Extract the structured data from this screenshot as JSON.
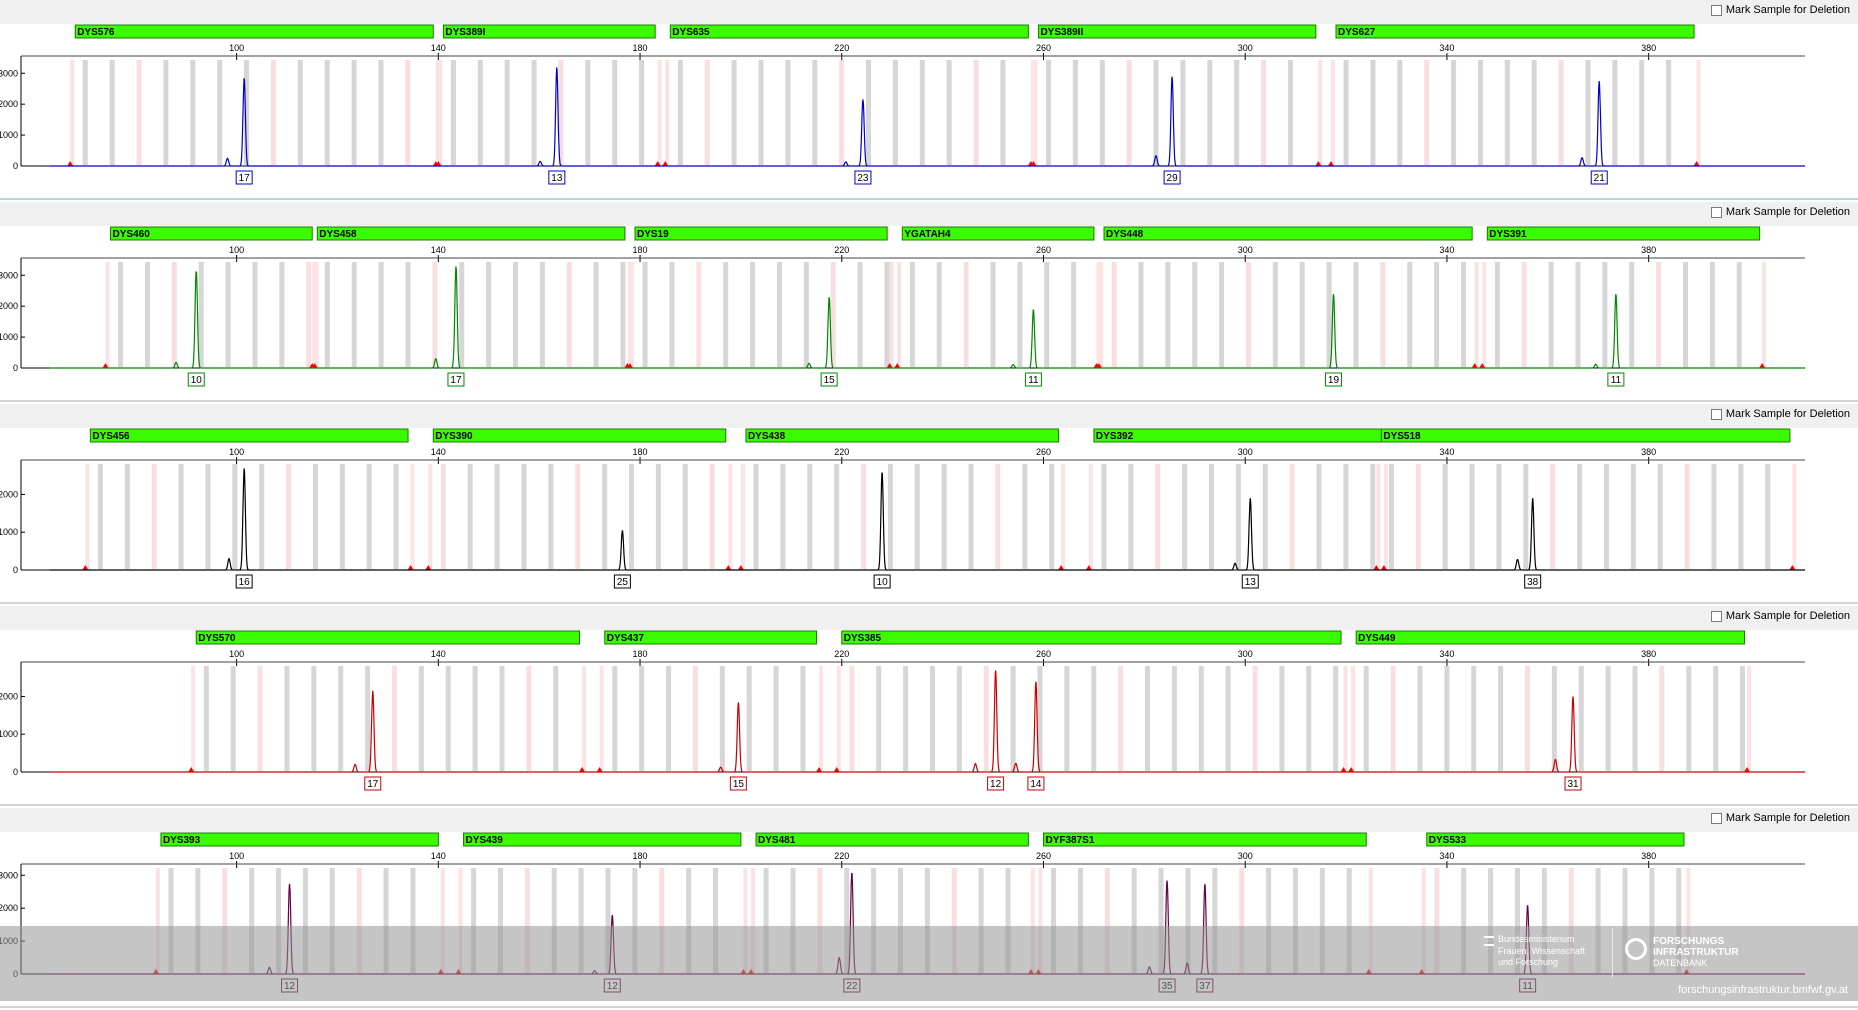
{
  "mark_label": "Mark Sample for Deletion",
  "footer": {
    "org_lines": [
      "Bundesministerium",
      "Frauen, Wissenschaft",
      "und Forschung"
    ],
    "brand_lines": [
      "FORSCHUNGS",
      "INFRASTRUKTUR",
      "DATENBANK"
    ],
    "url": "forschungsinfrastruktur.bmfwf.gv.at"
  },
  "chart_data": [
    {
      "type": "line",
      "color": "#0000cc",
      "ylim": [
        0,
        3300
      ],
      "y_ticks": [
        0,
        1000,
        2000,
        3000
      ],
      "x_range": [
        63,
        411
      ],
      "x_ticks": [
        100,
        140,
        180,
        220,
        260,
        300,
        340,
        380
      ],
      "markers": [
        {
          "name": "DYS576",
          "start": 68,
          "end": 139
        },
        {
          "name": "DYS389I",
          "start": 141,
          "end": 183
        },
        {
          "name": "DYS635",
          "start": 186,
          "end": 257
        },
        {
          "name": "DYS389II",
          "start": 259,
          "end": 314
        },
        {
          "name": "DYS627",
          "start": 318,
          "end": 389
        }
      ],
      "peaks": [
        {
          "x": 101.5,
          "h": 2850
        },
        {
          "x": 98.2,
          "h": 250
        },
        {
          "x": 163.5,
          "h": 3200
        },
        {
          "x": 160.2,
          "h": 150
        },
        {
          "x": 224.2,
          "h": 2150
        },
        {
          "x": 220.8,
          "h": 130
        },
        {
          "x": 285.5,
          "h": 2900
        },
        {
          "x": 282.3,
          "h": 330
        },
        {
          "x": 370.2,
          "h": 2750
        },
        {
          "x": 366.8,
          "h": 270
        }
      ],
      "alleles": [
        {
          "x": 101.5,
          "label": "17"
        },
        {
          "x": 163.5,
          "label": "13"
        },
        {
          "x": 224.2,
          "label": "23"
        },
        {
          "x": 285.5,
          "label": "29"
        },
        {
          "x": 370.2,
          "label": "21"
        }
      ]
    },
    {
      "type": "line",
      "color": "#008800",
      "ylim": [
        0,
        3300
      ],
      "y_ticks": [
        0,
        1000,
        2000,
        3000
      ],
      "x_range": [
        63,
        411
      ],
      "x_ticks": [
        100,
        140,
        180,
        220,
        260,
        300,
        340,
        380
      ],
      "markers": [
        {
          "name": "DYS460",
          "start": 75,
          "end": 115
        },
        {
          "name": "DYS458",
          "start": 116,
          "end": 177
        },
        {
          "name": "DYS19",
          "start": 179,
          "end": 229
        },
        {
          "name": "YGATAH4",
          "start": 232,
          "end": 270
        },
        {
          "name": "DYS448",
          "start": 272,
          "end": 345
        },
        {
          "name": "DYS391",
          "start": 348,
          "end": 402
        }
      ],
      "peaks": [
        {
          "x": 92,
          "h": 3150
        },
        {
          "x": 88,
          "h": 180
        },
        {
          "x": 143.5,
          "h": 3300
        },
        {
          "x": 139.5,
          "h": 300
        },
        {
          "x": 217.5,
          "h": 2300
        },
        {
          "x": 213.5,
          "h": 150
        },
        {
          "x": 258,
          "h": 1900
        },
        {
          "x": 254,
          "h": 110
        },
        {
          "x": 317.5,
          "h": 2400
        },
        {
          "x": 373.5,
          "h": 2400
        },
        {
          "x": 369.5,
          "h": 120
        }
      ],
      "alleles": [
        {
          "x": 92,
          "label": "10"
        },
        {
          "x": 143.5,
          "label": "17"
        },
        {
          "x": 217.5,
          "label": "15"
        },
        {
          "x": 258,
          "label": "11"
        },
        {
          "x": 317.5,
          "label": "19"
        },
        {
          "x": 373.5,
          "label": "11"
        }
      ]
    },
    {
      "type": "line",
      "color": "#000000",
      "ylim": [
        0,
        2700
      ],
      "y_ticks": [
        0,
        1000,
        2000
      ],
      "x_range": [
        63,
        411
      ],
      "x_ticks": [
        100,
        140,
        180,
        220,
        260,
        300,
        340,
        380
      ],
      "markers": [
        {
          "name": "DYS456",
          "start": 71,
          "end": 134
        },
        {
          "name": "DYS390",
          "start": 139,
          "end": 197
        },
        {
          "name": "DYS438",
          "start": 201,
          "end": 263
        },
        {
          "name": "DYS392",
          "start": 270,
          "end": 327
        },
        {
          "name": "DYS518",
          "start": 327,
          "end": 408
        }
      ],
      "peaks": [
        {
          "x": 101.5,
          "h": 2700
        },
        {
          "x": 98.5,
          "h": 300
        },
        {
          "x": 176.5,
          "h": 1050
        },
        {
          "x": 228,
          "h": 2600
        },
        {
          "x": 301,
          "h": 1900
        },
        {
          "x": 298,
          "h": 180
        },
        {
          "x": 357,
          "h": 1900
        },
        {
          "x": 354,
          "h": 280
        }
      ],
      "alleles": [
        {
          "x": 101.5,
          "label": "16"
        },
        {
          "x": 176.5,
          "label": "25"
        },
        {
          "x": 228,
          "label": "10"
        },
        {
          "x": 301,
          "label": "13"
        },
        {
          "x": 357,
          "label": "38"
        }
      ]
    },
    {
      "type": "line",
      "color": "#cc0000",
      "ylim": [
        0,
        2700
      ],
      "y_ticks": [
        0,
        1000,
        2000
      ],
      "x_range": [
        63,
        411
      ],
      "x_ticks": [
        100,
        140,
        180,
        220,
        260,
        300,
        340,
        380
      ],
      "markers": [
        {
          "name": "DYS570",
          "start": 92,
          "end": 168
        },
        {
          "name": "DYS437",
          "start": 173,
          "end": 215
        },
        {
          "name": "DYS385",
          "start": 220,
          "end": 319
        },
        {
          "name": "DYS449",
          "start": 322,
          "end": 399
        }
      ],
      "peaks": [
        {
          "x": 127,
          "h": 2150
        },
        {
          "x": 123.5,
          "h": 200
        },
        {
          "x": 199.5,
          "h": 1850
        },
        {
          "x": 196,
          "h": 130
        },
        {
          "x": 250.5,
          "h": 2700
        },
        {
          "x": 246.5,
          "h": 220
        },
        {
          "x": 258.5,
          "h": 2400
        },
        {
          "x": 254.5,
          "h": 230
        },
        {
          "x": 365,
          "h": 2000
        },
        {
          "x": 361.5,
          "h": 330
        }
      ],
      "alleles": [
        {
          "x": 127,
          "label": "17"
        },
        {
          "x": 199.5,
          "label": "15"
        },
        {
          "x": 250.5,
          "label": "12"
        },
        {
          "x": 258.5,
          "label": "14"
        },
        {
          "x": 365,
          "label": "31"
        }
      ]
    },
    {
      "type": "line",
      "color": "#660044",
      "ylim": [
        0,
        3100
      ],
      "y_ticks": [
        0,
        1000,
        2000,
        3000
      ],
      "x_range": [
        63,
        411
      ],
      "x_ticks": [
        100,
        140,
        180,
        220,
        260,
        300,
        340,
        380
      ],
      "markers": [
        {
          "name": "DYS393",
          "start": 85,
          "end": 140
        },
        {
          "name": "DYS439",
          "start": 145,
          "end": 200
        },
        {
          "name": "DYS481",
          "start": 203,
          "end": 257
        },
        {
          "name": "DYF387S1",
          "start": 260,
          "end": 324
        },
        {
          "name": "DYS533",
          "start": 336,
          "end": 387
        }
      ],
      "peaks": [
        {
          "x": 110.5,
          "h": 2750
        },
        {
          "x": 106.5,
          "h": 200
        },
        {
          "x": 174.5,
          "h": 1800
        },
        {
          "x": 171,
          "h": 100
        },
        {
          "x": 222,
          "h": 3100
        },
        {
          "x": 219.5,
          "h": 500
        },
        {
          "x": 284.5,
          "h": 2850
        },
        {
          "x": 281,
          "h": 220
        },
        {
          "x": 292,
          "h": 2750
        },
        {
          "x": 288.5,
          "h": 330
        },
        {
          "x": 356,
          "h": 2100
        }
      ],
      "alleles": [
        {
          "x": 110.5,
          "label": "12"
        },
        {
          "x": 174.5,
          "label": "12"
        },
        {
          "x": 222,
          "label": "22"
        },
        {
          "x": 284.5,
          "label": "35"
        },
        {
          "x": 292,
          "label": "37"
        },
        {
          "x": 356,
          "label": "11"
        }
      ]
    }
  ]
}
